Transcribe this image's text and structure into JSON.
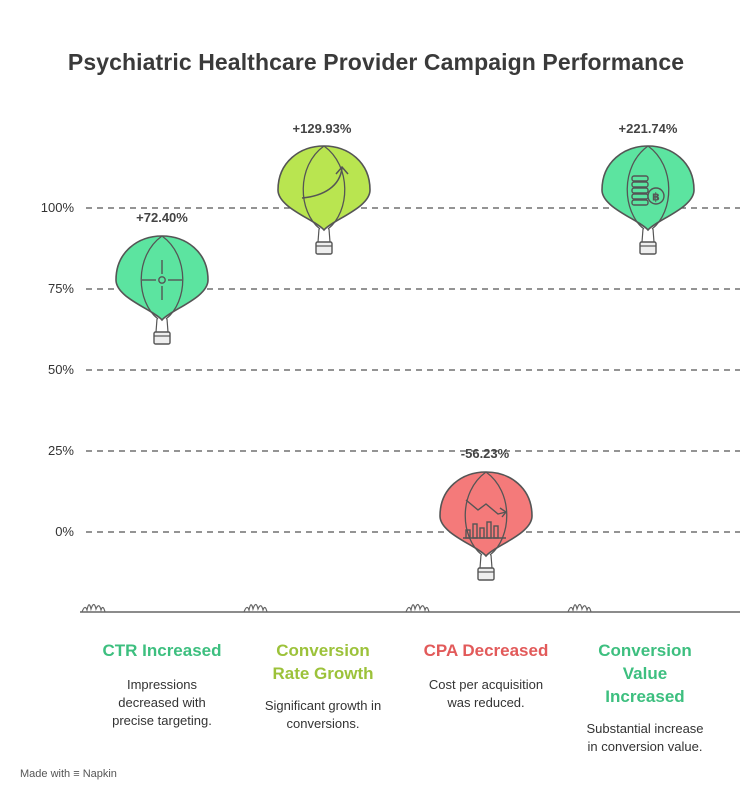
{
  "title": "Psychiatric Healthcare Provider Campaign Performance",
  "axis_ticks": [
    "100%",
    "75%",
    "50%",
    "25%",
    "0%"
  ],
  "colors": {
    "green": "#5ce4a0",
    "lime": "#b9e550",
    "red": "#f47a7a",
    "title_green": "#3dbf7f",
    "title_lime": "#9cc23a",
    "title_red": "#e25a5a"
  },
  "columns": [
    {
      "value": "+72.40%",
      "title_lines": [
        "CTR Increased"
      ],
      "desc_lines": [
        "Impressions",
        "decreased with",
        "precise targeting."
      ],
      "icon": "crosshair-icon",
      "color": "green"
    },
    {
      "value": "+129.93%",
      "title_lines": [
        "Conversion",
        "Rate Growth"
      ],
      "desc_lines": [
        "Significant growth in",
        "conversions."
      ],
      "icon": "growth-arrow-icon",
      "color": "lime"
    },
    {
      "value": "-56.23%",
      "title_lines": [
        "CPA Decreased"
      ],
      "desc_lines": [
        "Cost per acquisition",
        "was reduced."
      ],
      "icon": "declining-chart-icon",
      "color": "red"
    },
    {
      "value": "+221.74%",
      "title_lines": [
        "Conversion",
        "Value",
        "Increased"
      ],
      "desc_lines": [
        "Substantial increase",
        "in conversion value."
      ],
      "icon": "coins-icon",
      "color": "green"
    }
  ],
  "footer": {
    "made_with": "Made with",
    "brand": "Napkin"
  }
}
